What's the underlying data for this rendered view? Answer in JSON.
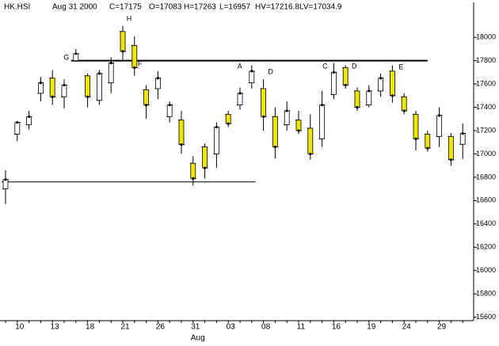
{
  "chart_data": {
    "type": "candlestick",
    "header": [
      "HK.HSI",
      "Aug  31  2000",
      "C=17175",
      "O=17083",
      "H=17263",
      "L=16957",
      "HV=17216.8",
      "LV=17034.9"
    ],
    "categories": [
      null,
      "10",
      null,
      null,
      "13",
      null,
      null,
      "18",
      null,
      null,
      "21",
      null,
      null,
      "26",
      null,
      null,
      "31",
      null,
      null,
      "03",
      null,
      null,
      "08",
      null,
      null,
      "11",
      null,
      null,
      "16",
      null,
      null,
      "19",
      null,
      null,
      "24",
      null,
      null,
      "29",
      null,
      null
    ],
    "x_month_label": "Aug",
    "open": [
      16700,
      17170,
      17250,
      17520,
      17650,
      17490,
      17800,
      17670,
      17460,
      17610,
      18050,
      17930,
      17550,
      17560,
      17320,
      17290,
      16920,
      17060,
      17000,
      17340,
      17420,
      17610,
      17560,
      17320,
      17250,
      17290,
      17220,
      17130,
      17510,
      17740,
      17540,
      17420,
      17540,
      17710,
      17490,
      17340,
      17170,
      17150,
      17150,
      17083
    ],
    "high": [
      16860,
      17280,
      17370,
      17660,
      17720,
      17640,
      17900,
      17690,
      17720,
      17830,
      18100,
      18010,
      17590,
      17710,
      17450,
      17370,
      16980,
      17090,
      17270,
      17370,
      17570,
      17760,
      17640,
      17400,
      17450,
      17370,
      17340,
      17540,
      17780,
      17760,
      17570,
      17590,
      17690,
      17760,
      17520,
      17370,
      17200,
      17400,
      17180,
      17263
    ],
    "low": [
      16570,
      17110,
      17210,
      17450,
      17420,
      17390,
      17790,
      17400,
      17420,
      17520,
      17810,
      17670,
      17300,
      17470,
      17270,
      17000,
      16730,
      16790,
      16880,
      17230,
      17380,
      17560,
      17200,
      16960,
      17200,
      17170,
      16950,
      17060,
      17470,
      17560,
      17370,
      17400,
      17490,
      17440,
      17340,
      17030,
      17020,
      17060,
      16900,
      16957
    ],
    "close": [
      16780,
      17270,
      17320,
      17610,
      17490,
      17590,
      17860,
      17490,
      17690,
      17780,
      17880,
      17740,
      17420,
      17650,
      17420,
      17080,
      16790,
      16880,
      17230,
      17260,
      17520,
      17710,
      17320,
      17060,
      17370,
      17200,
      17000,
      17420,
      17700,
      17590,
      17400,
      17540,
      17650,
      17500,
      17370,
      17130,
      17050,
      17330,
      16950,
      17175
    ],
    "up_color": "#ffffff",
    "down_color": "#f2e600",
    "levels": [
      17800,
      16760
    ],
    "annotations": [
      "G",
      "H",
      "F",
      "A",
      "D",
      "C",
      "D",
      "E"
    ],
    "ylim": [
      15570,
      18300
    ],
    "yticks": [
      18000,
      17800,
      17600,
      17400,
      17200,
      17000,
      16800,
      16600,
      16400,
      16200,
      16000,
      15800,
      15600
    ]
  }
}
